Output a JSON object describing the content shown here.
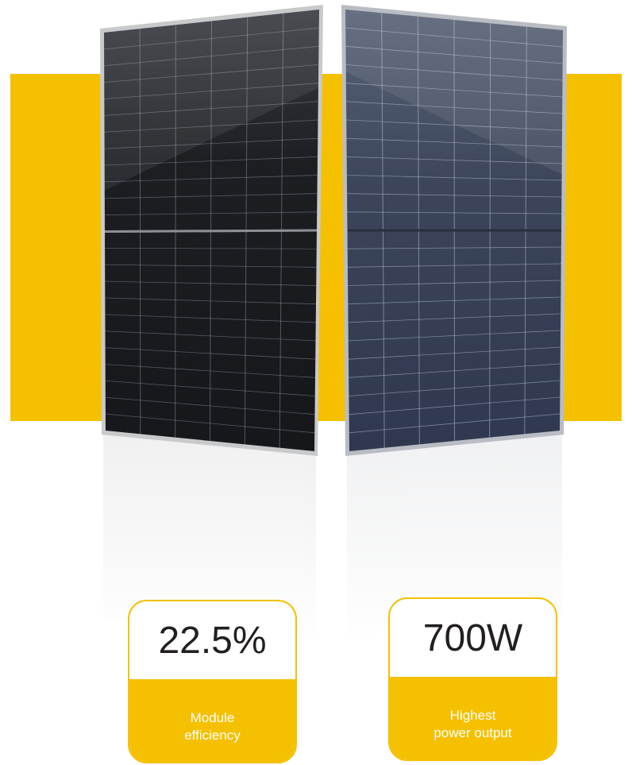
{
  "cards": [
    {
      "value": "22.5%",
      "label_lines": [
        "Module",
        "efficiency"
      ]
    },
    {
      "value": "700W",
      "label_lines": [
        "Highest",
        "power output"
      ]
    }
  ]
}
